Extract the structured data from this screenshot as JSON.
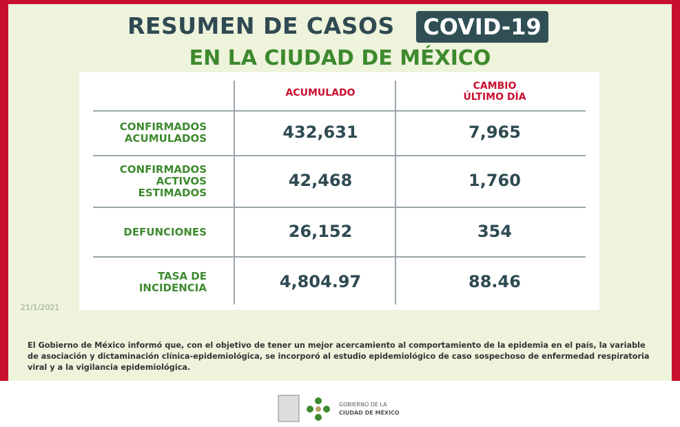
{
  "header": {
    "title": "RESUMEN DE CASOS",
    "badge": "COVID-19",
    "subtitle": "EN LA CIUDAD DE MÉXICO"
  },
  "table": {
    "columns": [
      "ACUMULADO",
      [
        "CAMBIO",
        "ÚLTIMO DÍA"
      ]
    ],
    "rows": [
      {
        "label": [
          "CONFIRMADOS",
          "ACUMULADOS"
        ],
        "values": [
          "432,631",
          "7,965"
        ]
      },
      {
        "label": [
          "CONFIRMADOS",
          "ACTIVOS",
          "ESTIMADOS"
        ],
        "values": [
          "42,468",
          "1,760"
        ]
      },
      {
        "label": [
          "DEFUNCIONES"
        ],
        "values": [
          "26,152",
          "354"
        ]
      },
      {
        "label": [
          "TASA DE",
          "INCIDENCIA"
        ],
        "values": [
          "4,804.97",
          "88.46"
        ]
      }
    ]
  },
  "date": "21/1/2021",
  "note": "El Gobierno de México informó que, con el objetivo de tener un mejor acercamiento al comportamiento de la epidemia en el país, la variable de asociación y dictaminación clínica-epidemiológica, se incorporó al estudio epidemiológico de caso sospechoso de enfermedad respiratoria viral y a la vigilancia epidemiológica.",
  "footer": {
    "logo_text": [
      "GOBIERNO DE LA",
      "CIUDAD DE MÉXICO"
    ]
  }
}
